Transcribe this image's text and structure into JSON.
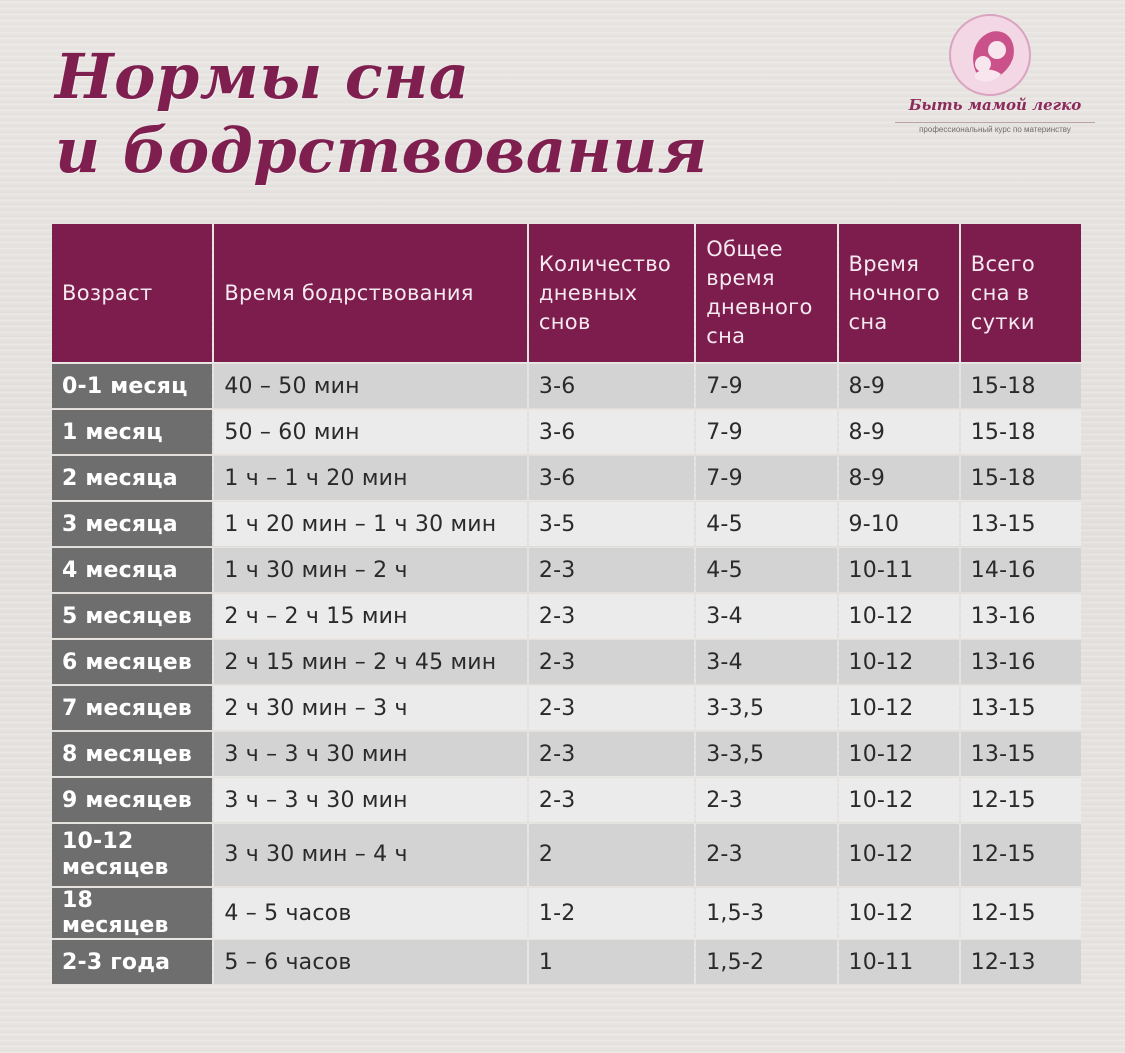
{
  "title": {
    "line1": "Нормы сна",
    "line2": "и бодрствования"
  },
  "logo": {
    "name": "Быть мамой легко",
    "tagline": "профессиональный курс по материнству",
    "accent": "#c23a7a"
  },
  "colors": {
    "header_bg": "#7c1d4d",
    "age_bg": "#6e6e6e",
    "row_shade": "#d3d3d3",
    "row_light": "#ebebeb",
    "title": "#7e1f4f"
  },
  "table": {
    "headers": [
      "Возраст",
      "Время бодрствования",
      "Количество дневных снов",
      "Общее время дневного сна",
      "Время ночного сна",
      "Всего сна в сутки"
    ],
    "rows": [
      [
        "0-1 месяц",
        "40 – 50 мин",
        "3-6",
        "7-9",
        "8-9",
        "15-18"
      ],
      [
        "1 месяц",
        "50 – 60 мин",
        "3-6",
        "7-9",
        "8-9",
        "15-18"
      ],
      [
        "2 месяца",
        "1 ч – 1 ч 20 мин",
        "3-6",
        "7-9",
        "8-9",
        "15-18"
      ],
      [
        "3 месяца",
        "1 ч 20 мин – 1 ч 30 мин",
        "3-5",
        "4-5",
        "9-10",
        "13-15"
      ],
      [
        "4 месяца",
        "1 ч 30 мин – 2 ч",
        "2-3",
        "4-5",
        "10-11",
        "14-16"
      ],
      [
        "5 месяцев",
        "2 ч – 2 ч 15 мин",
        "2-3",
        "3-4",
        "10-12",
        "13-16"
      ],
      [
        "6 месяцев",
        "2 ч 15 мин – 2 ч 45 мин",
        "2-3",
        "3-4",
        "10-12",
        "13-16"
      ],
      [
        "7 месяцев",
        "2 ч 30 мин – 3 ч",
        "2-3",
        "3-3,5",
        "10-12",
        "13-15"
      ],
      [
        "8 месяцев",
        "3 ч – 3 ч 30 мин",
        "2-3",
        "3-3,5",
        "10-12",
        "13-15"
      ],
      [
        "9 месяцев",
        "3 ч – 3 ч 30 мин",
        "2-3",
        "2-3",
        "10-12",
        "12-15"
      ],
      [
        "10-12 месяцев",
        "3 ч 30 мин – 4 ч",
        "2",
        "2-3",
        "10-12",
        "12-15"
      ],
      [
        "18 месяцев",
        "4 – 5 часов",
        "1-2",
        "1,5-3",
        "10-12",
        "12-15"
      ],
      [
        "2-3 года",
        "5 – 6 часов",
        "1",
        "1,5-2",
        "10-11",
        "12-13"
      ]
    ]
  }
}
